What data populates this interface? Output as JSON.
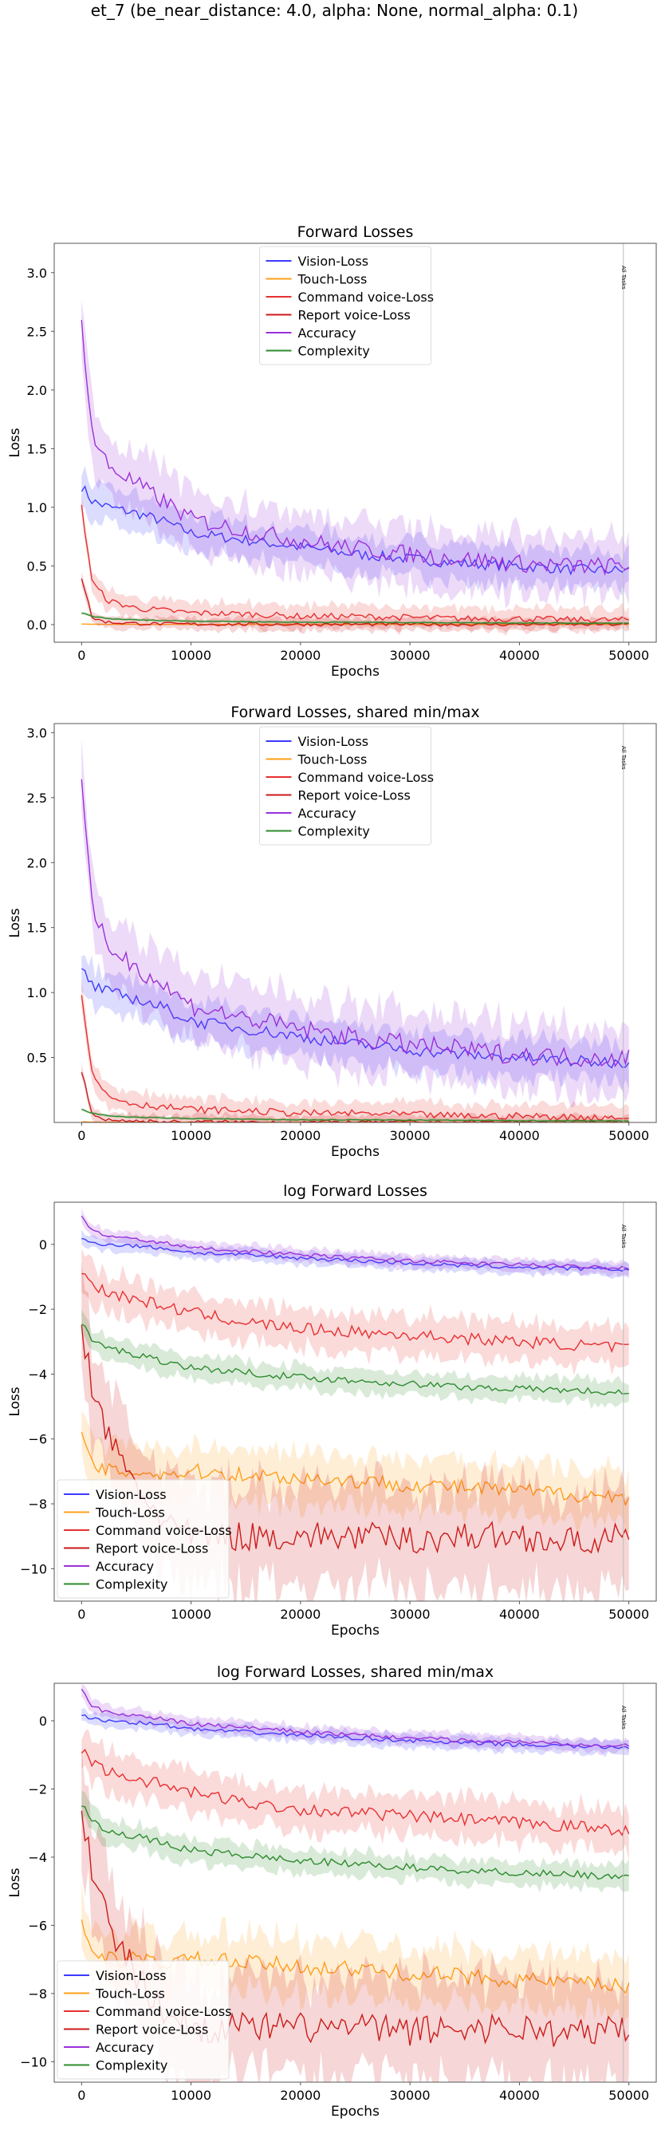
{
  "suptitle": "et_7 (be_near_distance: 4.0, alpha: None, normal_alpha: 0.1)",
  "colors": {
    "vision": "#3b3bff",
    "touch": "#ff9f1a",
    "command": "#e83030",
    "report": "#cc1a1a",
    "accuracy": "#9b30d9",
    "complexity": "#2e8b2e"
  },
  "chart_data": [
    {
      "type": "line",
      "title": "Forward Losses",
      "xlabel": "Epochs",
      "ylabel": "Loss",
      "xlim": [
        -2500,
        52500
      ],
      "ylim": [
        -0.15,
        3.25
      ],
      "xticks": [
        0,
        10000,
        20000,
        30000,
        40000,
        50000
      ],
      "yticks": [
        0.0,
        0.5,
        1.0,
        1.5,
        2.0,
        2.5,
        3.0
      ],
      "ytick_labels": [
        "0.0",
        "0.5",
        "1.0",
        "1.5",
        "2.0",
        "2.5",
        "3.0"
      ],
      "log": false,
      "legend": "upper-center",
      "vline_label": "All Tasks",
      "x": [
        0,
        1000,
        2500,
        5000,
        7500,
        10000,
        15000,
        20000,
        25000,
        30000,
        35000,
        40000,
        45000,
        50000
      ],
      "series": [
        {
          "name": "Vision-Loss",
          "color_key": "vision",
          "values": [
            1.18,
            1.05,
            1.0,
            0.95,
            0.88,
            0.78,
            0.72,
            0.66,
            0.6,
            0.56,
            0.52,
            0.5,
            0.47,
            0.46
          ],
          "band": 0.15
        },
        {
          "name": "Touch-Loss",
          "color_key": "touch",
          "values": [
            0.005,
            0.003,
            0.002,
            0.002,
            0.002,
            0.002,
            0.002,
            0.002,
            0.002,
            0.002,
            0.002,
            0.002,
            0.002,
            0.002
          ],
          "band": 0.004
        },
        {
          "name": "Command voice-Loss",
          "color_key": "command",
          "values": [
            1.0,
            0.35,
            0.2,
            0.14,
            0.12,
            0.1,
            0.09,
            0.07,
            0.07,
            0.06,
            0.05,
            0.05,
            0.04,
            0.04
          ],
          "band": 0.09
        },
        {
          "name": "Report voice-Loss",
          "color_key": "report",
          "values": [
            0.4,
            0.05,
            0.02,
            0.01,
            0.005,
            0.004,
            0.003,
            0.002,
            0.002,
            0.002,
            0.002,
            0.002,
            0.002,
            0.002
          ],
          "band": 0.05
        },
        {
          "name": "Accuracy",
          "color_key": "accuracy",
          "values": [
            2.6,
            1.6,
            1.35,
            1.2,
            1.05,
            0.9,
            0.8,
            0.72,
            0.65,
            0.6,
            0.56,
            0.52,
            0.5,
            0.5
          ],
          "band": 0.25
        },
        {
          "name": "Complexity",
          "color_key": "complexity",
          "values": [
            0.1,
            0.07,
            0.05,
            0.04,
            0.035,
            0.03,
            0.025,
            0.02,
            0.02,
            0.018,
            0.016,
            0.014,
            0.013,
            0.012
          ],
          "band": 0.01
        }
      ]
    },
    {
      "type": "line",
      "title": "Forward Losses, shared min/max",
      "xlabel": "Epochs",
      "ylabel": "Loss",
      "xlim": [
        -2500,
        52500
      ],
      "ylim": [
        0.0,
        3.07
      ],
      "xticks": [
        0,
        10000,
        20000,
        30000,
        40000,
        50000
      ],
      "yticks": [
        0.5,
        1.0,
        1.5,
        2.0,
        2.5,
        3.0
      ],
      "ytick_labels": [
        "0.5",
        "1.0",
        "1.5",
        "2.0",
        "2.5",
        "3.0"
      ],
      "log": false,
      "legend": "upper-center",
      "vline_label": "All Tasks",
      "x": [
        0,
        1000,
        2500,
        5000,
        7500,
        10000,
        15000,
        20000,
        25000,
        30000,
        35000,
        40000,
        45000,
        50000
      ],
      "series": [
        {
          "name": "Vision-Loss",
          "color_key": "vision",
          "values": [
            1.18,
            1.05,
            1.0,
            0.95,
            0.88,
            0.78,
            0.72,
            0.66,
            0.6,
            0.56,
            0.52,
            0.5,
            0.47,
            0.46
          ],
          "band": 0.15
        },
        {
          "name": "Touch-Loss",
          "color_key": "touch",
          "values": [
            0.005,
            0.003,
            0.002,
            0.002,
            0.002,
            0.002,
            0.002,
            0.002,
            0.002,
            0.002,
            0.002,
            0.002,
            0.002,
            0.002
          ],
          "band": 0.004
        },
        {
          "name": "Command voice-Loss",
          "color_key": "command",
          "values": [
            1.0,
            0.35,
            0.2,
            0.14,
            0.12,
            0.1,
            0.09,
            0.07,
            0.07,
            0.06,
            0.05,
            0.05,
            0.04,
            0.04
          ],
          "band": 0.09
        },
        {
          "name": "Report voice-Loss",
          "color_key": "report",
          "values": [
            0.4,
            0.05,
            0.02,
            0.01,
            0.005,
            0.004,
            0.003,
            0.002,
            0.002,
            0.002,
            0.002,
            0.002,
            0.002,
            0.002
          ],
          "band": 0.05
        },
        {
          "name": "Accuracy",
          "color_key": "accuracy",
          "values": [
            2.6,
            1.6,
            1.35,
            1.2,
            1.05,
            0.9,
            0.8,
            0.72,
            0.65,
            0.6,
            0.56,
            0.52,
            0.5,
            0.5
          ],
          "band": 0.25
        },
        {
          "name": "Complexity",
          "color_key": "complexity",
          "values": [
            0.1,
            0.07,
            0.05,
            0.04,
            0.035,
            0.03,
            0.025,
            0.02,
            0.02,
            0.018,
            0.016,
            0.014,
            0.013,
            0.012
          ],
          "band": 0.01
        }
      ]
    },
    {
      "type": "line",
      "title": "log Forward Losses",
      "xlabel": "Epochs",
      "ylabel": "Loss",
      "xlim": [
        -2500,
        52500
      ],
      "ylim": [
        -11.0,
        1.3
      ],
      "xticks": [
        0,
        10000,
        20000,
        30000,
        40000,
        50000
      ],
      "yticks": [
        -10,
        -8,
        -6,
        -4,
        -2,
        0
      ],
      "ytick_labels": [
        "−10",
        "−8",
        "−6",
        "−4",
        "−2",
        "0"
      ],
      "log": true,
      "legend": "lower-left",
      "vline_label": "All Tasks",
      "x": [
        0,
        1000,
        2500,
        5000,
        7500,
        10000,
        15000,
        20000,
        25000,
        30000,
        35000,
        40000,
        45000,
        50000
      ],
      "series": [
        {
          "name": "Vision-Loss",
          "color_key": "vision",
          "values": [
            0.15,
            0.05,
            0.0,
            -0.05,
            -0.12,
            -0.25,
            -0.33,
            -0.42,
            -0.5,
            -0.58,
            -0.66,
            -0.7,
            -0.75,
            -0.78
          ],
          "band": 0.2
        },
        {
          "name": "Touch-Loss",
          "color_key": "touch",
          "values": [
            -6.0,
            -6.8,
            -7.0,
            -7.0,
            -7.1,
            -7.0,
            -7.1,
            -7.2,
            -7.3,
            -7.4,
            -7.5,
            -7.6,
            -7.7,
            -7.8
          ],
          "band": 0.8
        },
        {
          "name": "Command voice-Loss",
          "color_key": "command",
          "values": [
            -0.9,
            -1.2,
            -1.5,
            -1.7,
            -1.9,
            -2.1,
            -2.4,
            -2.6,
            -2.7,
            -2.8,
            -2.9,
            -3.0,
            -3.1,
            -3.2
          ],
          "band": 0.6
        },
        {
          "name": "Report voice-Loss",
          "color_key": "report",
          "values": [
            -2.5,
            -4.5,
            -6.0,
            -7.5,
            -8.5,
            -9.0,
            -9.0,
            -9.0,
            -9.0,
            -9.1,
            -9.0,
            -9.0,
            -9.2,
            -9.0
          ],
          "band": 1.5
        },
        {
          "name": "Accuracy",
          "color_key": "accuracy",
          "values": [
            0.9,
            0.4,
            0.25,
            0.15,
            0.05,
            -0.1,
            -0.2,
            -0.32,
            -0.42,
            -0.5,
            -0.58,
            -0.62,
            -0.68,
            -0.72
          ],
          "band": 0.2
        },
        {
          "name": "Complexity",
          "color_key": "complexity",
          "values": [
            -2.4,
            -3.0,
            -3.2,
            -3.4,
            -3.6,
            -3.8,
            -3.95,
            -4.1,
            -4.2,
            -4.3,
            -4.4,
            -4.45,
            -4.5,
            -4.6
          ],
          "band": 0.35
        }
      ]
    },
    {
      "type": "line",
      "title": "log Forward Losses, shared min/max",
      "xlabel": "Epochs",
      "ylabel": "Loss",
      "xlim": [
        -2500,
        52500
      ],
      "ylim": [
        -10.6,
        1.1
      ],
      "xticks": [
        0,
        10000,
        20000,
        30000,
        40000,
        50000
      ],
      "yticks": [
        -10,
        -8,
        -6,
        -4,
        -2,
        0
      ],
      "ytick_labels": [
        "−10",
        "−8",
        "−6",
        "−4",
        "−2",
        "0"
      ],
      "log": true,
      "legend": "lower-left",
      "vline_label": "All Tasks",
      "x": [
        0,
        1000,
        2500,
        5000,
        7500,
        10000,
        15000,
        20000,
        25000,
        30000,
        35000,
        40000,
        45000,
        50000
      ],
      "series": [
        {
          "name": "Vision-Loss",
          "color_key": "vision",
          "values": [
            0.15,
            0.05,
            0.0,
            -0.05,
            -0.12,
            -0.25,
            -0.33,
            -0.42,
            -0.5,
            -0.58,
            -0.66,
            -0.7,
            -0.75,
            -0.78
          ],
          "band": 0.2
        },
        {
          "name": "Touch-Loss",
          "color_key": "touch",
          "values": [
            -6.0,
            -6.8,
            -7.0,
            -7.0,
            -7.1,
            -7.0,
            -7.1,
            -7.2,
            -7.3,
            -7.4,
            -7.5,
            -7.6,
            -7.7,
            -7.8
          ],
          "band": 0.8
        },
        {
          "name": "Command voice-Loss",
          "color_key": "command",
          "values": [
            -0.9,
            -1.2,
            -1.5,
            -1.7,
            -1.9,
            -2.1,
            -2.4,
            -2.6,
            -2.7,
            -2.8,
            -2.9,
            -3.0,
            -3.1,
            -3.2
          ],
          "band": 0.6
        },
        {
          "name": "Report voice-Loss",
          "color_key": "report",
          "values": [
            -2.5,
            -4.5,
            -6.0,
            -7.5,
            -8.5,
            -9.0,
            -9.0,
            -9.0,
            -9.0,
            -9.1,
            -9.0,
            -9.0,
            -9.2,
            -9.0
          ],
          "band": 1.5
        },
        {
          "name": "Accuracy",
          "color_key": "accuracy",
          "values": [
            0.9,
            0.4,
            0.25,
            0.15,
            0.05,
            -0.1,
            -0.2,
            -0.32,
            -0.42,
            -0.5,
            -0.58,
            -0.62,
            -0.68,
            -0.72
          ],
          "band": 0.2
        },
        {
          "name": "Complexity",
          "color_key": "complexity",
          "values": [
            -2.4,
            -3.0,
            -3.2,
            -3.4,
            -3.6,
            -3.8,
            -3.95,
            -4.1,
            -4.2,
            -4.3,
            -4.4,
            -4.45,
            -4.5,
            -4.6
          ],
          "band": 0.35
        }
      ]
    }
  ]
}
